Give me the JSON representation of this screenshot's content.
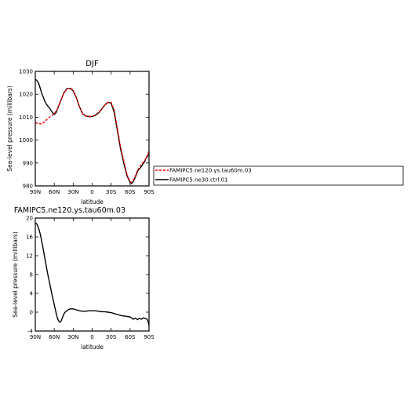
{
  "colors": {
    "series_dashed": "#ff0000",
    "series_solid": "#000000",
    "axis": "#000000"
  },
  "legend": {
    "entries": [
      "FAMIPC5.ne120.ys.tau60m.03",
      "FAMIPC5.ne30.ctrl.01"
    ]
  },
  "chart_data": [
    {
      "type": "line",
      "title": "DJF",
      "xlabel": "latitude",
      "ylabel": "Sea-level pressure (millibars)",
      "xlim": [
        90,
        -90
      ],
      "ylim": [
        980,
        1030
      ],
      "xtick_values": [
        90,
        60,
        30,
        0,
        -30,
        -60,
        -90
      ],
      "xtick_labels": [
        "90N",
        "60N",
        "30N",
        "0",
        "30S",
        "60S",
        "90S"
      ],
      "ytick_values": [
        980,
        990,
        1000,
        1010,
        1020,
        1030
      ],
      "ytick_labels": [
        "980",
        "990",
        "1000",
        "1010",
        "1020",
        "1030"
      ],
      "legend_position": "right",
      "series": [
        {
          "name": "FAMIPC5.ne120.ys.tau60m.03",
          "style": "dashed",
          "x": [
            90,
            85,
            80,
            75,
            70,
            65,
            60,
            55,
            50,
            45,
            40,
            35,
            30,
            25,
            20,
            15,
            10,
            5,
            0,
            -5,
            -10,
            -15,
            -20,
            -25,
            -30,
            -35,
            -40,
            -45,
            -50,
            -55,
            -60,
            -62,
            -65,
            -67,
            -70,
            -72,
            -75,
            -78,
            -80,
            -83,
            -85,
            -88,
            -90
          ],
          "y": [
            1007.5,
            1007.3,
            1007,
            1008,
            1009.5,
            1010.5,
            1011.5,
            1013.5,
            1017,
            1020.3,
            1022.3,
            1022.8,
            1021.8,
            1018.5,
            1014.5,
            1011.5,
            1010.5,
            1010.3,
            1010.5,
            1011,
            1012,
            1013.5,
            1015.3,
            1016.5,
            1016.5,
            1013,
            1005,
            997,
            991,
            985,
            982,
            981.5,
            982.5,
            983.5,
            985.5,
            987,
            988,
            989.5,
            990,
            991,
            992,
            993.5,
            995.5
          ]
        },
        {
          "name": "FAMIPC5.ne30.ctrl.01",
          "style": "solid",
          "x": [
            90,
            88,
            85,
            82,
            80,
            77,
            75,
            72,
            70,
            67,
            65,
            62,
            60,
            57,
            55,
            50,
            45,
            40,
            35,
            30,
            25,
            20,
            15,
            10,
            5,
            0,
            -5,
            -10,
            -15,
            -20,
            -25,
            -30,
            -35,
            -40,
            -45,
            -50,
            -55,
            -60,
            -62,
            -65,
            -67,
            -70,
            -72,
            -75,
            -78,
            -80,
            -83,
            -85,
            -88,
            -90
          ],
          "y": [
            1026.5,
            1026.2,
            1025,
            1022.5,
            1020.5,
            1018.5,
            1017,
            1015.5,
            1014.8,
            1013.8,
            1012.8,
            1011.8,
            1011.2,
            1012,
            1013.5,
            1017,
            1020.5,
            1022.5,
            1022.6,
            1021.5,
            1018.5,
            1014.5,
            1011.5,
            1010.5,
            1010.3,
            1010.3,
            1010.8,
            1011.8,
            1013.5,
            1015.3,
            1016.5,
            1016.2,
            1012,
            1004,
            996,
            990,
            984.5,
            981.5,
            981,
            981.8,
            983,
            985,
            986.5,
            987.5,
            988.5,
            989.5,
            990.5,
            992,
            993,
            994.5
          ]
        }
      ]
    },
    {
      "type": "line",
      "title": "FAMIPC5.ne120.ys.tau60m.03",
      "xlabel": "latitude",
      "ylabel": "Sea-level pressure (millibars)",
      "xlim": [
        90,
        -90
      ],
      "ylim": [
        -4,
        20
      ],
      "xtick_values": [
        90,
        60,
        30,
        0,
        -30,
        -60,
        -90
      ],
      "xtick_labels": [
        "90N",
        "60N",
        "30N",
        "0",
        "30S",
        "60S",
        "90S"
      ],
      "ytick_values": [
        -4,
        0,
        4,
        8,
        12,
        16,
        20
      ],
      "ytick_labels": [
        "-4",
        "0",
        "4",
        "8",
        "12",
        "16",
        "20"
      ],
      "series": [
        {
          "style": "solid",
          "x": [
            90,
            88,
            86,
            84,
            82,
            80,
            78,
            76,
            74,
            72,
            70,
            68,
            66,
            64,
            62,
            60,
            58,
            56,
            54,
            52,
            50,
            48,
            46,
            44,
            42,
            40,
            38,
            35,
            30,
            25,
            20,
            15,
            10,
            5,
            0,
            -5,
            -10,
            -15,
            -20,
            -25,
            -30,
            -35,
            -40,
            -45,
            -50,
            -55,
            -60,
            -62,
            -65,
            -68,
            -70,
            -72,
            -75,
            -78,
            -80,
            -82,
            -85,
            -87,
            -88,
            -89,
            -90
          ],
          "y": [
            19,
            18.8,
            18.3,
            17.5,
            16.5,
            15.2,
            13.8,
            12.3,
            10.8,
            9.3,
            7.9,
            6.6,
            5.3,
            4,
            2.8,
            1.6,
            0.4,
            -0.8,
            -1.6,
            -2.1,
            -2.1,
            -1.5,
            -0.8,
            -0.2,
            0.1,
            0.3,
            0.5,
            0.7,
            0.7,
            0.5,
            0.3,
            0.2,
            0.2,
            0.3,
            0.3,
            0.3,
            0.2,
            0.1,
            0.1,
            0,
            -0.1,
            -0.3,
            -0.5,
            -0.7,
            -0.8,
            -0.9,
            -1,
            -1.2,
            -1.5,
            -1.3,
            -1.4,
            -1.6,
            -1.3,
            -1.5,
            -1.3,
            -1.2,
            -1.4,
            -1.5,
            -1.8,
            -2.2,
            -2.8
          ]
        }
      ]
    }
  ]
}
